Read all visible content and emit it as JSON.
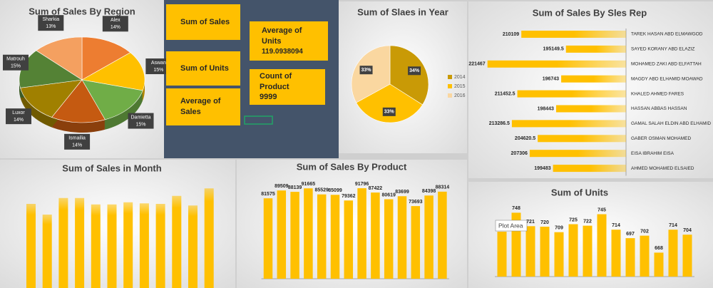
{
  "chart_data": [
    {
      "type": "pie",
      "title": "Sum of Sales By Region",
      "categories": [
        "Alex",
        "Aswan",
        "Damietta",
        "Ismailia",
        "Luxor",
        "Matrouh",
        "Sharkia"
      ],
      "values": [
        14,
        15,
        15,
        14,
        14,
        15,
        13
      ],
      "value_labels": [
        "14%",
        "15%",
        "15%",
        "14%",
        "14%",
        "15%",
        "13%"
      ],
      "colors": [
        "#ed7d31",
        "#ffc000",
        "#70ad47",
        "#c55a11",
        "#a08000",
        "#548235",
        "#f4a060"
      ],
      "data_labels": "category_and_value",
      "legend": false
    },
    {
      "type": "pie",
      "title": "Sum of Slaes in Year",
      "categories": [
        "2014",
        "2015",
        "2016"
      ],
      "values": [
        34,
        33,
        33
      ],
      "value_labels": [
        "34%",
        "33%",
        "33%"
      ],
      "colors": [
        "#c99a06",
        "#ffc000",
        "#fad7a0"
      ],
      "data_labels": "value",
      "legend": true
    },
    {
      "type": "barh",
      "title": "Sum of Sales By Sles Rep",
      "categories": [
        "TAREK HASAN ABD ELMAWGOD",
        "SAYED KORANY ABD ELAZIZ",
        "MOHAMED ZAKI ABD ELFATTAH",
        "MAGDY ABD ELHAMID MOAWAD",
        "KHALED AHMED FARES",
        "HASSAN ABBAS HASSAN",
        "GAMAL SALAH ELDIN ABD ELHAMID",
        "GABER OSMAN MOHAMED",
        "EISA IBRAHIM EISA",
        "AHMED MOHAMED ELSAIED"
      ],
      "values": [
        210109,
        195149.5,
        221467,
        196743,
        211452.5,
        198443,
        213286.5,
        204620.5,
        207306,
        199483
      ],
      "color": "#ffc000",
      "xlim": [
        175000,
        230000
      ],
      "x_reversed": true,
      "data_labels": true
    },
    {
      "type": "bar",
      "title": "Sum of Sales in Month",
      "categories": [
        null,
        null,
        null,
        null,
        null,
        null,
        null,
        null,
        null,
        null,
        null,
        null
      ],
      "values": [
        172000,
        152000,
        183000,
        183000,
        171000,
        171000,
        175000,
        173000,
        172000,
        187000,
        169000,
        201000
      ],
      "color": "#ffc000",
      "ylim": [
        0,
        250000
      ],
      "data_labels": false
    },
    {
      "type": "bar",
      "title": "Sum of Sales By Product",
      "categories": [
        null,
        null,
        null,
        null,
        null,
        null,
        null,
        null,
        null,
        null,
        null,
        null,
        null,
        null
      ],
      "values": [
        81575,
        89509,
        88139,
        91665,
        85529,
        85099,
        79362,
        91796,
        87422,
        80619,
        83699,
        73693,
        84398,
        88314
      ],
      "color": "#ffc000",
      "ylim": [
        0,
        100000
      ],
      "data_labels": true
    },
    {
      "type": "bar",
      "title": "Sum of Units",
      "categories": [
        null,
        null,
        null,
        null,
        null,
        null,
        null,
        null,
        null,
        null,
        null,
        null,
        null,
        null
      ],
      "values": [
        710,
        748,
        721,
        720,
        709,
        725,
        722,
        745,
        714,
        697,
        702,
        668,
        714,
        704
      ],
      "color": "#ffc000",
      "ylim": [
        620,
        760
      ],
      "data_labels": true
    }
  ],
  "cards": [
    {
      "label": "Sum of Sales"
    },
    {
      "label": "Sum of Units"
    },
    {
      "label": "Average of Sales"
    },
    {
      "label": "Average of Units",
      "value": 119.0938094
    },
    {
      "label": "Count of Product",
      "value": 9999
    }
  ],
  "tooltip": "Plot Area"
}
